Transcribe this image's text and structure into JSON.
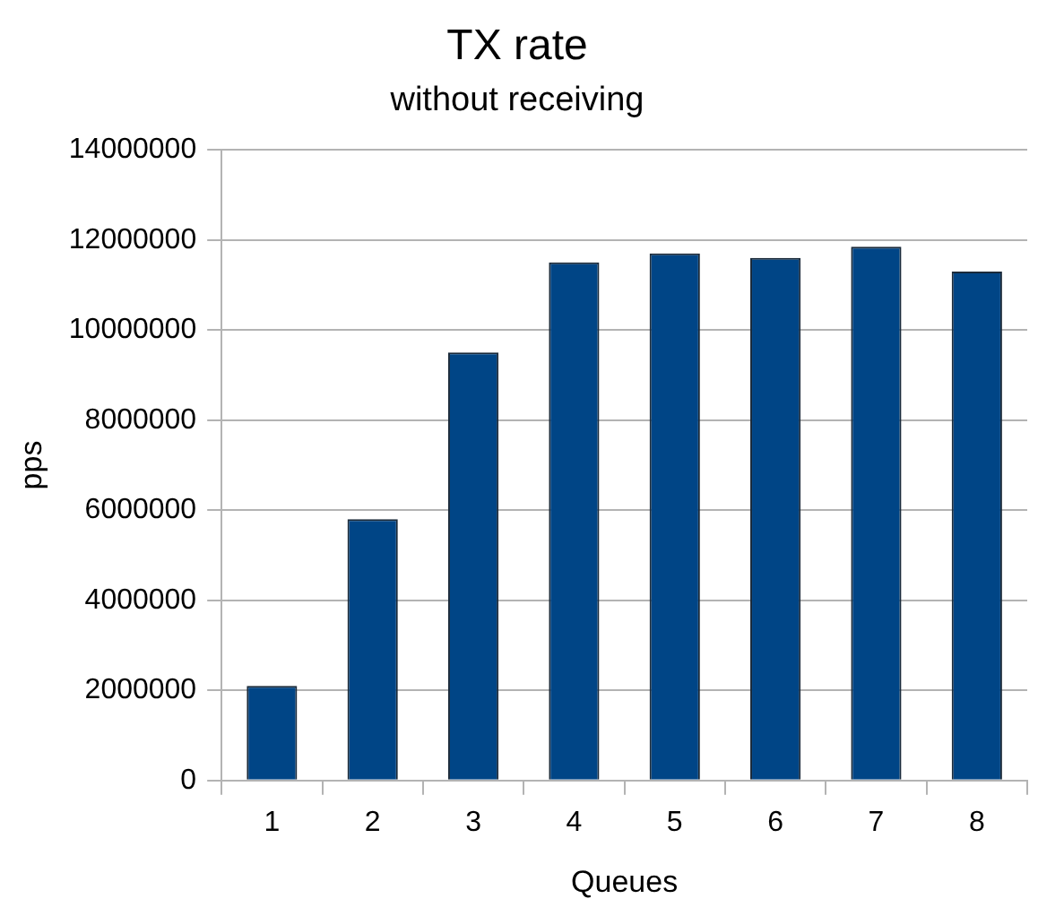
{
  "chart_data": {
    "type": "bar",
    "title": "TX rate",
    "subtitle": "without receiving",
    "xlabel": "Queues",
    "ylabel": "pps",
    "categories": [
      "1",
      "2",
      "3",
      "4",
      "5",
      "6",
      "7",
      "8"
    ],
    "values": [
      2100000,
      5800000,
      9500000,
      11500000,
      11700000,
      11600000,
      11850000,
      11300000
    ],
    "color": "#004586",
    "ylim": [
      0,
      14000000
    ],
    "yticks": [
      0,
      2000000,
      4000000,
      6000000,
      8000000,
      10000000,
      12000000,
      14000000
    ],
    "grid": "y",
    "legend": false
  }
}
